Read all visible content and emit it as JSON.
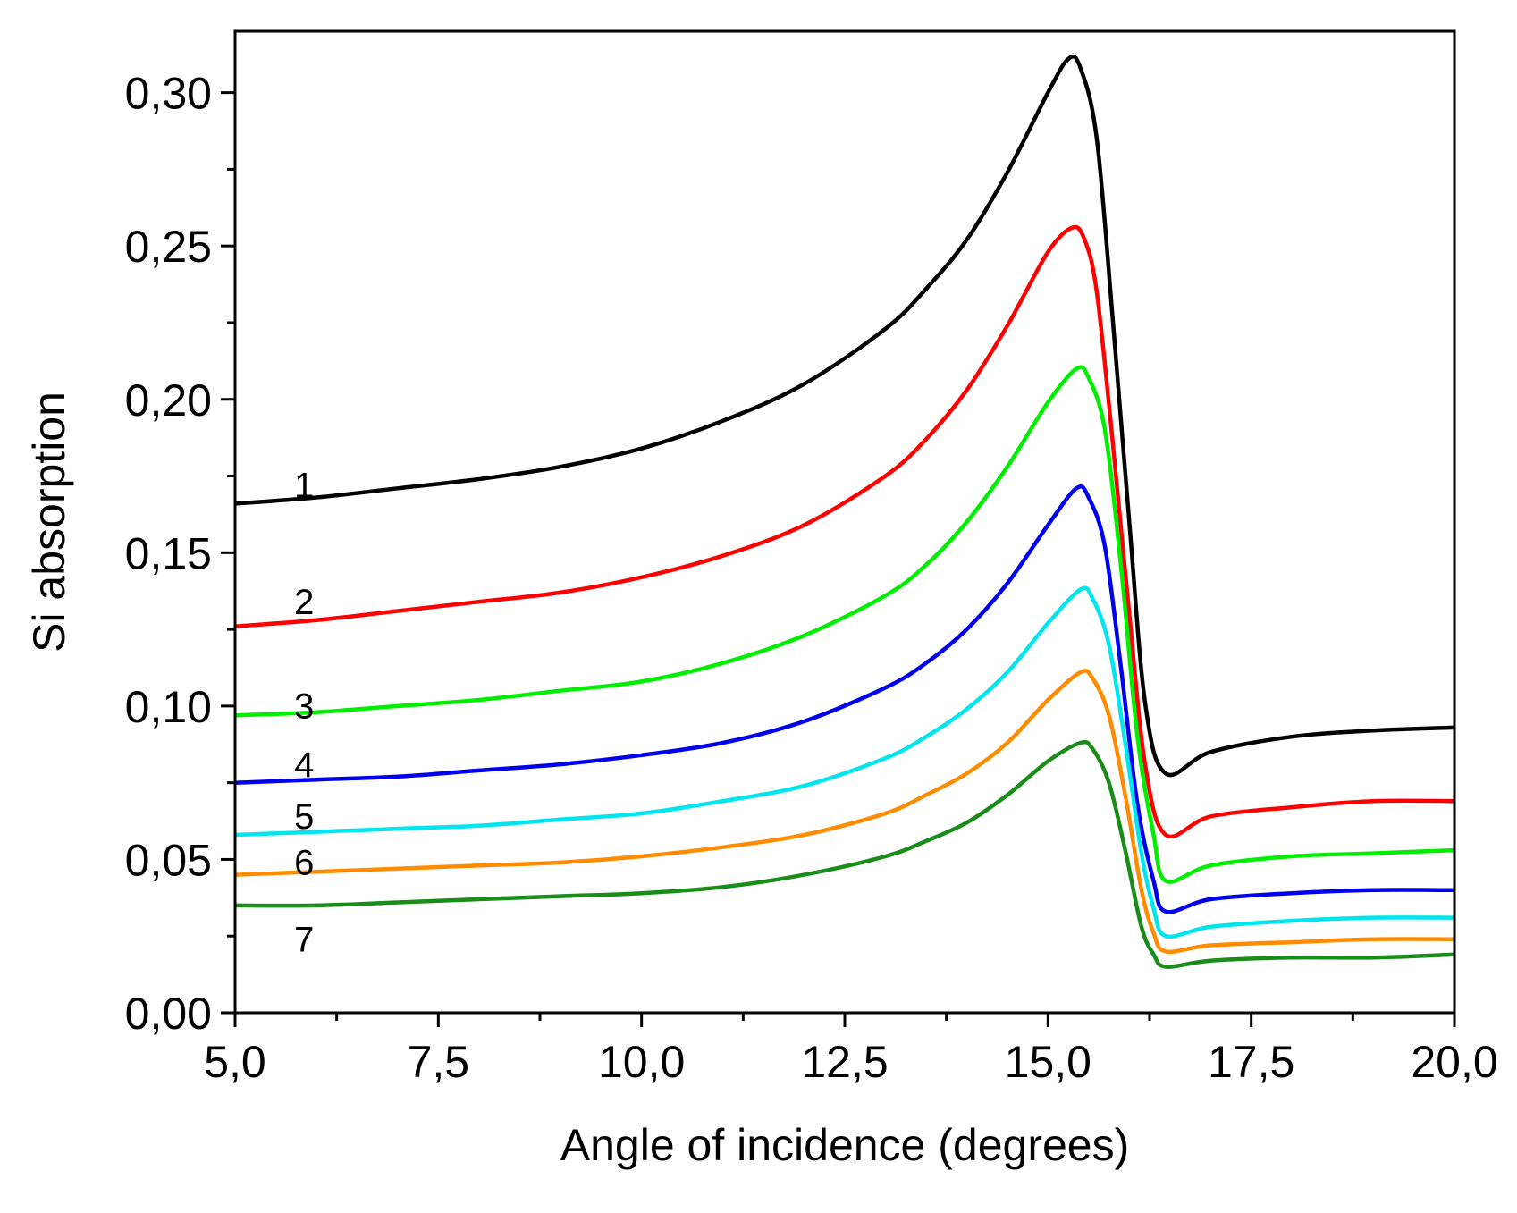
{
  "chart_data": {
    "type": "line",
    "xlabel": "Angle of incidence (degrees)",
    "ylabel": "Si absorption",
    "xlim": [
      5.0,
      20.0
    ],
    "ylim": [
      0.0,
      0.32
    ],
    "xticks": [
      5.0,
      7.5,
      10.0,
      12.5,
      15.0,
      17.5,
      20.0
    ],
    "xtick_labels": [
      "5,0",
      "7,5",
      "10,0",
      "12,5",
      "15,0",
      "17,5",
      "20,0"
    ],
    "yticks": [
      0.0,
      0.05,
      0.1,
      0.15,
      0.2,
      0.25,
      0.3
    ],
    "ytick_labels": [
      "0,00",
      "0,05",
      "0,10",
      "0,15",
      "0,20",
      "0,25",
      "0,30"
    ],
    "grid": false,
    "legend": "none",
    "series": [
      {
        "name": "1",
        "color": "#000000",
        "label_at": [
          5.85,
          0.168
        ],
        "points": [
          [
            5.0,
            0.166
          ],
          [
            6.0,
            0.168
          ],
          [
            7.0,
            0.171
          ],
          [
            8.0,
            0.174
          ],
          [
            9.0,
            0.178
          ],
          [
            10.0,
            0.184
          ],
          [
            11.0,
            0.193
          ],
          [
            12.0,
            0.205
          ],
          [
            13.0,
            0.223
          ],
          [
            13.5,
            0.236
          ],
          [
            14.0,
            0.252
          ],
          [
            14.5,
            0.274
          ],
          [
            15.0,
            0.3
          ],
          [
            15.25,
            0.311
          ],
          [
            15.4,
            0.308
          ],
          [
            15.6,
            0.285
          ],
          [
            15.8,
            0.225
          ],
          [
            16.0,
            0.16
          ],
          [
            16.2,
            0.1
          ],
          [
            16.45,
            0.078
          ],
          [
            17.0,
            0.085
          ],
          [
            18.0,
            0.09
          ],
          [
            19.0,
            0.092
          ],
          [
            20.0,
            0.093
          ]
        ]
      },
      {
        "name": "2",
        "color": "#ff0000",
        "label_at": [
          5.85,
          0.13
        ],
        "points": [
          [
            5.0,
            0.126
          ],
          [
            6.0,
            0.128
          ],
          [
            7.0,
            0.131
          ],
          [
            8.0,
            0.134
          ],
          [
            9.0,
            0.137
          ],
          [
            10.0,
            0.142
          ],
          [
            11.0,
            0.149
          ],
          [
            12.0,
            0.159
          ],
          [
            13.0,
            0.175
          ],
          [
            13.5,
            0.187
          ],
          [
            14.0,
            0.203
          ],
          [
            14.5,
            0.224
          ],
          [
            15.0,
            0.248
          ],
          [
            15.3,
            0.256
          ],
          [
            15.45,
            0.252
          ],
          [
            15.6,
            0.235
          ],
          [
            15.8,
            0.185
          ],
          [
            16.0,
            0.13
          ],
          [
            16.2,
            0.08
          ],
          [
            16.45,
            0.058
          ],
          [
            17.0,
            0.064
          ],
          [
            18.0,
            0.067
          ],
          [
            19.0,
            0.069
          ],
          [
            20.0,
            0.069
          ]
        ]
      },
      {
        "name": "3",
        "color": "#00ee00",
        "label_at": [
          5.85,
          0.096
        ],
        "points": [
          [
            5.0,
            0.097
          ],
          [
            6.0,
            0.098
          ],
          [
            7.0,
            0.1
          ],
          [
            8.0,
            0.102
          ],
          [
            9.0,
            0.105
          ],
          [
            10.0,
            0.108
          ],
          [
            11.0,
            0.114
          ],
          [
            12.0,
            0.123
          ],
          [
            13.0,
            0.136
          ],
          [
            13.5,
            0.146
          ],
          [
            14.0,
            0.16
          ],
          [
            14.5,
            0.178
          ],
          [
            15.0,
            0.199
          ],
          [
            15.35,
            0.21
          ],
          [
            15.5,
            0.207
          ],
          [
            15.7,
            0.19
          ],
          [
            15.9,
            0.145
          ],
          [
            16.1,
            0.09
          ],
          [
            16.3,
            0.058
          ],
          [
            16.45,
            0.043
          ],
          [
            17.0,
            0.048
          ],
          [
            18.0,
            0.051
          ],
          [
            19.0,
            0.052
          ],
          [
            20.0,
            0.053
          ]
        ]
      },
      {
        "name": "4",
        "color": "#0000ee",
        "label_at": [
          5.85,
          0.077
        ],
        "points": [
          [
            5.0,
            0.075
          ],
          [
            6.0,
            0.076
          ],
          [
            7.0,
            0.077
          ],
          [
            8.0,
            0.079
          ],
          [
            9.0,
            0.081
          ],
          [
            10.0,
            0.084
          ],
          [
            11.0,
            0.088
          ],
          [
            12.0,
            0.095
          ],
          [
            13.0,
            0.106
          ],
          [
            13.5,
            0.114
          ],
          [
            14.0,
            0.125
          ],
          [
            14.5,
            0.14
          ],
          [
            15.0,
            0.159
          ],
          [
            15.35,
            0.171
          ],
          [
            15.5,
            0.168
          ],
          [
            15.7,
            0.152
          ],
          [
            15.9,
            0.112
          ],
          [
            16.1,
            0.068
          ],
          [
            16.3,
            0.043
          ],
          [
            16.45,
            0.033
          ],
          [
            17.0,
            0.037
          ],
          [
            18.0,
            0.039
          ],
          [
            19.0,
            0.04
          ],
          [
            20.0,
            0.04
          ]
        ]
      },
      {
        "name": "5",
        "color": "#00e5ee",
        "label_at": [
          5.85,
          0.06
        ],
        "points": [
          [
            5.0,
            0.058
          ],
          [
            6.0,
            0.059
          ],
          [
            7.0,
            0.06
          ],
          [
            8.0,
            0.061
          ],
          [
            9.0,
            0.063
          ],
          [
            10.0,
            0.065
          ],
          [
            11.0,
            0.069
          ],
          [
            12.0,
            0.074
          ],
          [
            13.0,
            0.083
          ],
          [
            13.5,
            0.09
          ],
          [
            14.0,
            0.099
          ],
          [
            14.5,
            0.111
          ],
          [
            15.0,
            0.127
          ],
          [
            15.4,
            0.138
          ],
          [
            15.55,
            0.135
          ],
          [
            15.75,
            0.12
          ],
          [
            15.95,
            0.088
          ],
          [
            16.15,
            0.052
          ],
          [
            16.3,
            0.034
          ],
          [
            16.45,
            0.025
          ],
          [
            17.0,
            0.028
          ],
          [
            18.0,
            0.03
          ],
          [
            19.0,
            0.031
          ],
          [
            20.0,
            0.031
          ]
        ]
      },
      {
        "name": "6",
        "color": "#ff8c00",
        "label_at": [
          5.85,
          0.045
        ],
        "points": [
          [
            5.0,
            0.045
          ],
          [
            6.0,
            0.046
          ],
          [
            7.0,
            0.047
          ],
          [
            8.0,
            0.048
          ],
          [
            9.0,
            0.049
          ],
          [
            10.0,
            0.051
          ],
          [
            11.0,
            0.054
          ],
          [
            12.0,
            0.058
          ],
          [
            13.0,
            0.065
          ],
          [
            13.5,
            0.071
          ],
          [
            14.0,
            0.078
          ],
          [
            14.5,
            0.088
          ],
          [
            15.0,
            0.102
          ],
          [
            15.4,
            0.111
          ],
          [
            15.55,
            0.109
          ],
          [
            15.75,
            0.097
          ],
          [
            15.95,
            0.071
          ],
          [
            16.15,
            0.04
          ],
          [
            16.3,
            0.026
          ],
          [
            16.45,
            0.02
          ],
          [
            17.0,
            0.022
          ],
          [
            18.0,
            0.023
          ],
          [
            19.0,
            0.024
          ],
          [
            20.0,
            0.024
          ]
        ]
      },
      {
        "name": "7",
        "color": "#1a8c1a",
        "label_at": [
          5.85,
          0.02
        ],
        "points": [
          [
            5.0,
            0.035
          ],
          [
            6.0,
            0.035
          ],
          [
            7.0,
            0.036
          ],
          [
            8.0,
            0.037
          ],
          [
            9.0,
            0.038
          ],
          [
            10.0,
            0.039
          ],
          [
            11.0,
            0.041
          ],
          [
            12.0,
            0.045
          ],
          [
            13.0,
            0.051
          ],
          [
            13.5,
            0.056
          ],
          [
            14.0,
            0.062
          ],
          [
            14.5,
            0.071
          ],
          [
            15.0,
            0.082
          ],
          [
            15.4,
            0.088
          ],
          [
            15.55,
            0.086
          ],
          [
            15.75,
            0.075
          ],
          [
            15.95,
            0.053
          ],
          [
            16.15,
            0.028
          ],
          [
            16.3,
            0.019
          ],
          [
            16.45,
            0.015
          ],
          [
            17.0,
            0.017
          ],
          [
            18.0,
            0.018
          ],
          [
            19.0,
            0.018
          ],
          [
            20.0,
            0.019
          ]
        ]
      }
    ]
  }
}
